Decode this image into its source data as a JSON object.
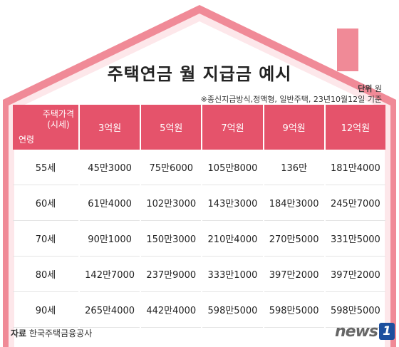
{
  "title": "주택연금 월 지급금 예시",
  "unit_label": "단위",
  "unit_value": "원",
  "note": "※종신지급방식,정액형, 일반주택, 23년10월12일 기준",
  "corner": {
    "price_line1": "주택가격",
    "price_line2": "(시세)",
    "age": "연령"
  },
  "columns": [
    "3억원",
    "5억원",
    "7억원",
    "9억원",
    "12억원"
  ],
  "rows": [
    {
      "age": "55세",
      "values": [
        "45만3000",
        "75만6000",
        "105만8000",
        "136만",
        "181만4000"
      ]
    },
    {
      "age": "60세",
      "values": [
        "61만4000",
        "102만3000",
        "143만3000",
        "184만3000",
        "245만7000"
      ]
    },
    {
      "age": "70세",
      "values": [
        "90만1000",
        "150만3000",
        "210만4000",
        "270만5000",
        "331만5000"
      ]
    },
    {
      "age": "80세",
      "values": [
        "142만7000",
        "237만9000",
        "333만1000",
        "397만2000",
        "397만2000"
      ]
    },
    {
      "age": "90세",
      "values": [
        "265만4000",
        "442만4000",
        "598만5000",
        "598만5000",
        "598만5000"
      ]
    }
  ],
  "source_label": "자료",
  "source_value": "한국주택금융공사",
  "logo": {
    "text": "news",
    "mark": "1"
  },
  "colors": {
    "roof": "#f08a97",
    "roof_inner": "#fde7ea",
    "header": "#e5536b"
  }
}
